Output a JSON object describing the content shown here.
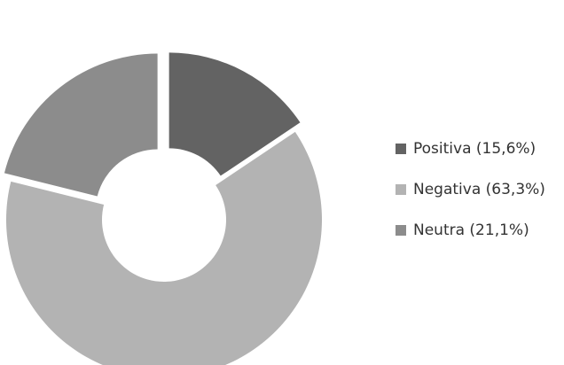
{
  "chart_data": {
    "type": "pie",
    "variant": "exploded-doughnut",
    "title": "",
    "categories": [
      "Positiva",
      "Negativa",
      "Neutra"
    ],
    "values": [
      15.6,
      63.3,
      21.1
    ],
    "colors": [
      "#636363",
      "#b3b3b3",
      "#8c8c8c"
    ],
    "legend_labels": [
      "Positiva (15,6%)",
      "Negativa (63,3%)",
      "Neutra (21,1%)"
    ],
    "legend_position": "right",
    "start_angle": "top, clockwise"
  }
}
